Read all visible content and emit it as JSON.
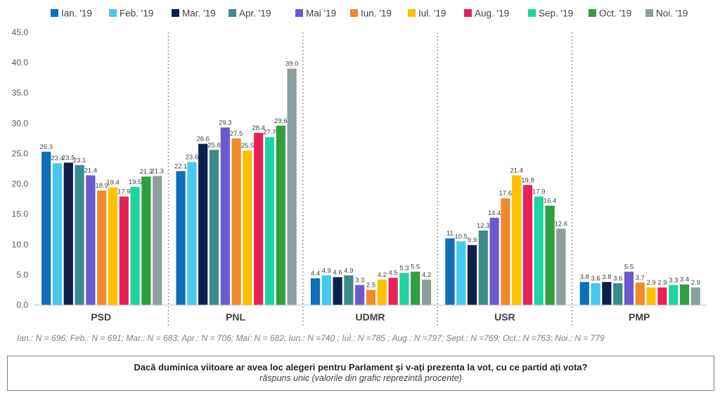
{
  "chart_data": {
    "type": "bar",
    "title": "",
    "xlabel": "",
    "ylabel": "",
    "ylim": [
      0,
      45
    ],
    "yticks": [
      "0.0",
      "5.0",
      "10.0",
      "15.0",
      "20.0",
      "25.0",
      "30.0",
      "35.0",
      "40.0",
      "45.0"
    ],
    "grid": false,
    "legend_position": "top",
    "categories": [
      "PSD",
      "PNL",
      "UDMR",
      "USR",
      "PMP"
    ],
    "series": [
      {
        "name": "Ian. '19",
        "color": "#0E6EB8",
        "values": [
          25.3,
          22.1,
          4.4,
          11,
          3.8
        ],
        "labels": [
          "25.3",
          "22.1",
          "4.4",
          "11",
          "3.8"
        ]
      },
      {
        "name": "Feb. '19",
        "color": "#46C8F0",
        "values": [
          23.4,
          23.6,
          4.9,
          10.5,
          3.6
        ],
        "labels": [
          "23.4",
          "23.6",
          "4.9",
          "10.5",
          "3.6"
        ]
      },
      {
        "name": "Mar. '19",
        "color": "#0D1F4F",
        "values": [
          23.5,
          26.6,
          4.6,
          9.9,
          3.8
        ],
        "labels": [
          "23.5",
          "26.6",
          "4.6",
          "9.9",
          "3.8"
        ]
      },
      {
        "name": "Apr. '19",
        "color": "#3A8A8E",
        "values": [
          23.1,
          25.6,
          4.9,
          12.3,
          3.6
        ],
        "labels": [
          "23.1",
          "25.6",
          "4.9",
          "12.3",
          "3.6"
        ]
      },
      {
        "name": "Mai '19",
        "color": "#6A5ACD",
        "values": [
          21.4,
          29.3,
          3.3,
          14.4,
          5.5
        ],
        "labels": [
          "21.4",
          "29.3",
          "3.3",
          "14.4",
          "5.5"
        ]
      },
      {
        "name": "Iun. '19",
        "color": "#F08A2C",
        "values": [
          18.9,
          27.5,
          2.5,
          17.6,
          3.7
        ],
        "labels": [
          "18.9",
          "27.5",
          "2.5",
          "17.6",
          "3.7"
        ]
      },
      {
        "name": "Iul. '19",
        "color": "#FFC000",
        "values": [
          19.4,
          25.5,
          4.2,
          21.4,
          2.9
        ],
        "labels": [
          "19.4",
          "25.5",
          "4.2",
          "21.4",
          "2.9"
        ]
      },
      {
        "name": "Aug. '19",
        "color": "#E8215A",
        "values": [
          17.9,
          28.4,
          4.5,
          19.8,
          2.9
        ],
        "labels": [
          "17.9",
          "28.4",
          "4.5",
          "19.8",
          "2.9"
        ]
      },
      {
        "name": "Sep. '19",
        "color": "#1ED4A0",
        "values": [
          19.5,
          27.7,
          5.3,
          17.9,
          3.3
        ],
        "labels": [
          "19.5",
          "27.7",
          "5.3",
          "17.9",
          "3.3"
        ]
      },
      {
        "name": "Oct. '19",
        "color": "#2E9E3E",
        "values": [
          21.2,
          29.6,
          5.5,
          16.4,
          3.4
        ],
        "labels": [
          "21.2",
          "29.6",
          "5.5",
          "16.4",
          "3.4"
        ]
      },
      {
        "name": "Noi. '19",
        "color": "#8C9E9E",
        "values": [
          21.3,
          39.0,
          4.2,
          12.6,
          2.9
        ],
        "labels": [
          "21.3",
          "39.0",
          "4.2",
          "12.6",
          "2.9"
        ]
      }
    ]
  },
  "footer": {
    "sample_note": "Ian.: N = 696;  Feb.: N = 691;  Mar.: N = 683; Apr.: N = 706; Mai: N = 682; Iun.: N =740 ; Iul.: N =785 ; Aug.: N =797; Sept.: N =769; Oct.: N =763; Noi.: N = 779",
    "question": "Dacă duminica viitoare ar avea loc alegeri pentru Parlament și v-ați prezenta la vot, cu ce partid ați vota?",
    "question_sub": "răspuns unic (valorile din grafic reprezintă procente)"
  }
}
